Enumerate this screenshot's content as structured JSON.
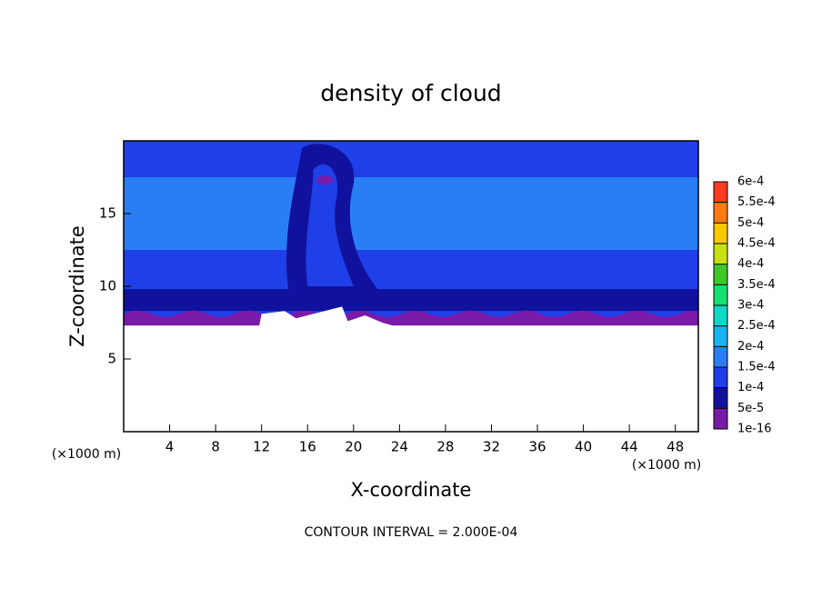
{
  "chart_data": {
    "type": "contour",
    "title": "density of cloud",
    "xlabel": "X-coordinate",
    "ylabel": "Z-coordinate",
    "xunit": "(×1000 m)",
    "yunit": "(×1000 m)",
    "xlim": [
      0,
      50
    ],
    "ylim": [
      0,
      20
    ],
    "xticks": [
      4,
      8,
      12,
      16,
      20,
      24,
      28,
      32,
      36,
      40,
      44,
      48
    ],
    "yticks": [
      5,
      10,
      15
    ],
    "colorbar": {
      "levels": [
        {
          "value": 1e-16,
          "label": "1e-16"
        },
        {
          "value": 5e-05,
          "label": "5e-5"
        },
        {
          "value": 0.0001,
          "label": "1e-4"
        },
        {
          "value": 0.00015,
          "label": "1.5e-4"
        },
        {
          "value": 0.0002,
          "label": "2e-4"
        },
        {
          "value": 0.00025,
          "label": "2.5e-4"
        },
        {
          "value": 0.0003,
          "label": "3e-4"
        },
        {
          "value": 0.00035,
          "label": "3.5e-4"
        },
        {
          "value": 0.0004,
          "label": "4e-4"
        },
        {
          "value": 0.00045,
          "label": "4.5e-4"
        },
        {
          "value": 0.0005,
          "label": "5e-4"
        },
        {
          "value": 0.00055,
          "label": "5.5e-4"
        },
        {
          "value": 0.0006,
          "label": "6e-4"
        }
      ],
      "colors": [
        "#7a1aa8",
        "#10129e",
        "#1f3fe8",
        "#2a7ef5",
        "#18b4f4",
        "#10d8c8",
        "#18e070",
        "#40c828",
        "#c8e010",
        "#f8c800",
        "#ff7a10",
        "#ff3a20"
      ]
    },
    "annotation": "CONTOUR INTERVAL = 2.000E-04"
  }
}
